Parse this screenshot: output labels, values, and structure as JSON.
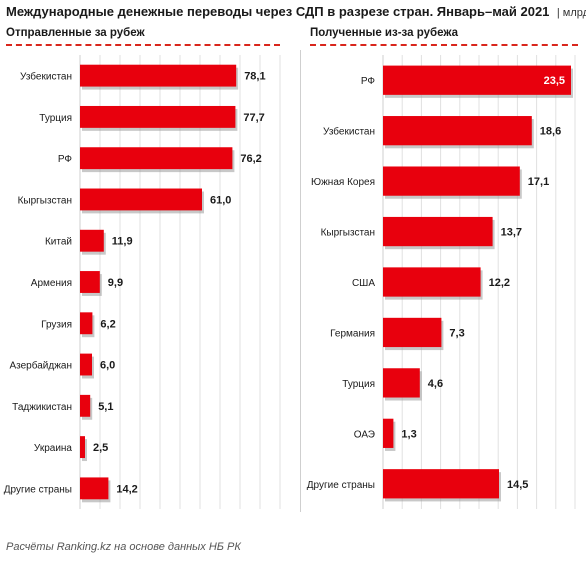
{
  "title": "Международные денежные переводы через СДП в разрезе стран. Январь–май 2021",
  "unit": "| млрд тг",
  "source": "Расчёты Ranking.kz на основе данных НБ РК",
  "colors": {
    "bar": "#e8000d",
    "bar_shadow": "#9a9a9a",
    "accent": "#d9261c"
  },
  "chart_data": [
    {
      "type": "bar",
      "orientation": "horizontal",
      "title": "Отправленные  за рубеж",
      "categories": [
        "Узбекистан",
        "Турция",
        "РФ",
        "Кыргызстан",
        "Китай",
        "Армения",
        "Грузия",
        "Азербайджан",
        "Таджикистан",
        "Украина",
        "Другие страны"
      ],
      "values": [
        78.1,
        77.7,
        76.2,
        61.0,
        11.9,
        9.9,
        6.2,
        6.0,
        5.1,
        2.5,
        14.2
      ],
      "labels": [
        "78,1",
        "77,7",
        "76,2",
        "61,0",
        "11,9",
        "9,9",
        "6,2",
        "6,0",
        "5,1",
        "2,5",
        "14,2"
      ],
      "xlim": [
        0,
        100
      ],
      "grid": true
    },
    {
      "type": "bar",
      "orientation": "horizontal",
      "title": "Полученные  из-за рубежа",
      "categories": [
        "РФ",
        "Узбекистан",
        "Южная Корея",
        "Кыргызстан",
        "США",
        "Германия",
        "Турция",
        "ОАЭ",
        "Другие страны"
      ],
      "values": [
        23.5,
        18.6,
        17.1,
        13.7,
        12.2,
        7.3,
        4.6,
        1.3,
        14.5
      ],
      "labels": [
        "23,5",
        "18,6",
        "17,1",
        "13,7",
        "12,2",
        "7,3",
        "4,6",
        "1,3",
        "14,5"
      ],
      "xlim": [
        0,
        24
      ],
      "grid": true
    }
  ]
}
